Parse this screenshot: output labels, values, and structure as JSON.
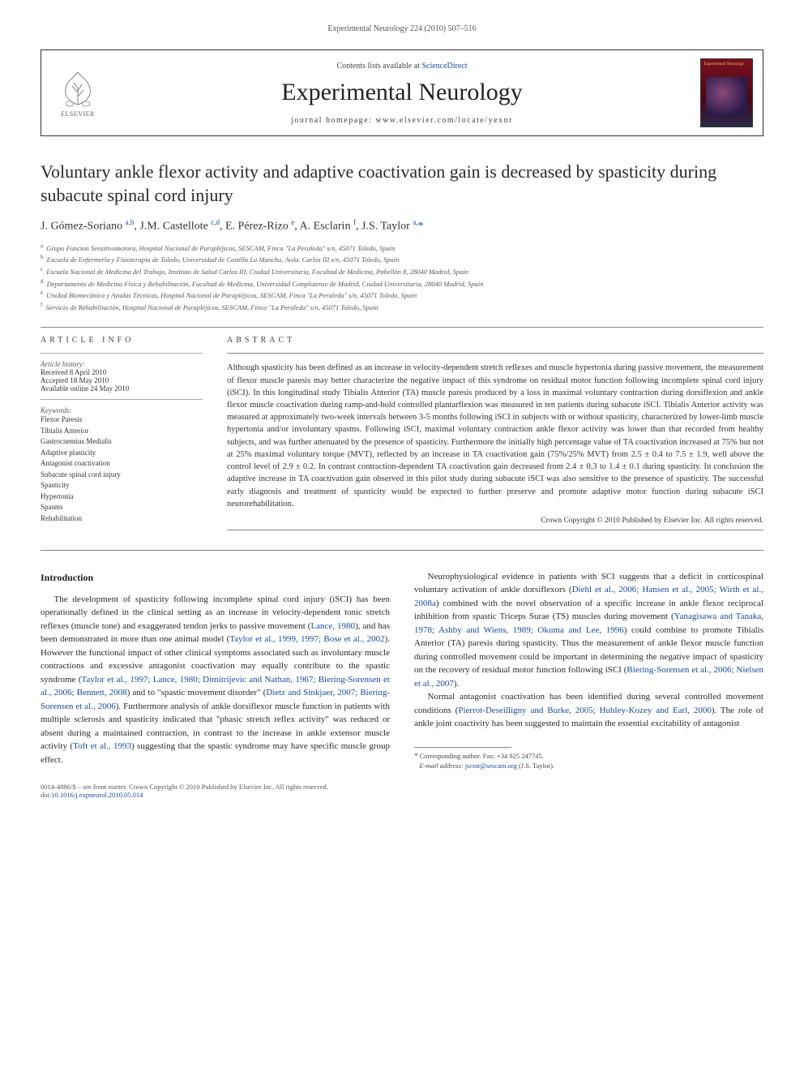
{
  "running_head": "Experimental Neurology 224 (2010) 507–516",
  "banner": {
    "contents_prefix": "Contents lists available at ",
    "contents_link": "ScienceDirect",
    "journal": "Experimental Neurology",
    "homepage_prefix": "journal homepage: ",
    "homepage": "www.elsevier.com/locate/yexnr",
    "publisher_label": "ELSEVIER",
    "cover_title": "Experimental Neurology"
  },
  "title": "Voluntary ankle flexor activity and adaptive coactivation gain is decreased by spasticity during subacute spinal cord injury",
  "authors_html": "J. Gómez-Soriano <sup>a,b</sup>, J.M. Castellote <sup>c,d</sup>, E. Pérez-Rizo <sup>e</sup>, A. Esclarin <sup>f</sup>, J.S. Taylor <sup>a,</sup><span class='star'>*</span>",
  "affiliations": [
    {
      "key": "a",
      "text": "Grupo Funcion Sensitivomotora, Hospital Nacional de Parapléjicos, SESCAM, Finca \"La Peraleda\" s/n, 45071 Toledo, Spain"
    },
    {
      "key": "b",
      "text": "Escuela de Enfermería y Fisioterapia de Toledo, Universidad de Castilla La Mancha, Avda. Carlos III s/n, 45071 Toledo, Spain"
    },
    {
      "key": "c",
      "text": "Escuela Nacional de Medicina del Trabajo, Instituto de Salud Carlos III, Ciudad Universitaria, Facultad de Medicina, Pabellón 8, 28040 Madrid, Spain"
    },
    {
      "key": "d",
      "text": "Departamento de Medicina Física y Rehabilitación, Facultad de Medicina, Universidad Complutense de Madrid, Ciudad Universitaria, 28040 Madrid, Spain"
    },
    {
      "key": "e",
      "text": "Unidad Biomecánica y Ayudas Técnicas, Hospital Nacional de Parapléjicos, SESCAM, Finca \"La Peraleda\" s/n, 45071 Toledo, Spain"
    },
    {
      "key": "f",
      "text": "Servicio de Rehabilitación, Hospital Nacional de Parapléjicos, SESCAM, Finca \"La Peraleda\" s/n, 45071 Toledo, Spain"
    }
  ],
  "article_info": {
    "label": "ARTICLE INFO",
    "history_label": "Article history:",
    "received": "Received 8 April 2010",
    "accepted": "Accepted 18 May 2010",
    "online": "Available online 24 May 2010",
    "keywords_label": "Keywords:",
    "keywords": [
      "Flexor Paresis",
      "Tibialis Anterior",
      "Gastrocnemius Medialis",
      "Adaptive plasticity",
      "Antagonist coactivation",
      "Subacute spinal cord injury",
      "Spasticity",
      "Hypertonia",
      "Spasms",
      "Rehabilitation"
    ]
  },
  "abstract": {
    "label": "ABSTRACT",
    "text": "Although spasticity has been defined as an increase in velocity-dependent stretch reflexes and muscle hypertonia during passive movement, the measurement of flexor muscle paresis may better characterize the negative impact of this syndrome on residual motor function following incomplete spinal cord injury (iSCI). In this longitudinal study Tibialis Anterior (TA) muscle paresis produced by a loss in maximal voluntary contraction during dorsiflexion and ankle flexor muscle coactivation during ramp-and-hold controlled plantarflexion was measured in ten patients during subacute iSCI. Tibialis Anterior activity was measured at approximately two-week intervals between 3-5 months following iSCI in subjects with or without spasticity, characterized by lower-limb muscle hypertonia and/or involuntary spasms. Following iSCI, maximal voluntary contraction ankle flexor activity was lower than that recorded from healthy subjects, and was further attenuated by the presence of spasticity. Furthermore the initially high percentage value of TA coactivation increased at 75% but not at 25% maximal voluntary torque (MVT), reflected by an increase in TA coactivation gain (75%/25% MVT) from 2.5 ± 0.4 to 7.5 ± 1.9, well above the control level of 2.9 ± 0.2. In contrast contraction-dependent TA coactivation gain decreased from 2.4 ± 0.3 to 1.4 ± 0.1 during spasticity. In conclusion the adaptive increase in TA coactivation gain observed in this pilot study during subacute iSCI was also sensitive to the presence of spasticity. The successful early diagnosis and treatment of spasticity would be expected to further preserve and promote adaptive motor function during subacute iSCI neurorehabilitation.",
    "copyright": "Crown Copyright © 2010 Published by Elsevier Inc. All rights reserved."
  },
  "intro": {
    "heading": "Introduction",
    "p1_a": "The development of spasticity following incomplete spinal cord injury (iSCI) has been operationally defined in the clinical setting as an increase in velocity-dependent tonic stretch reflexes (muscle tone) and exaggerated tendon jerks to passive movement (",
    "p1_c1": "Lance, 1980",
    "p1_b": "), and has been demonstrated in more than one animal model (",
    "p1_c2": "Taylor et al., 1999, 1997; Bose et al., 2002",
    "p1_c": "). However the functional impact of other clinical symptoms associated such as involuntary muscle contractions and excessive antagonist coactivation may equally contribute to the spastic syndrome (",
    "p1_c3": "Taylor et al., 1997; Lance, 1980; Dimitrijevic and Nathan, 1967; Biering-Sorensen et al., 2006; Bennett, 2008",
    "p1_d": ") and to \"spastic movement disorder\" (",
    "p1_c4": "Dietz and Sinkjaer, 2007; Biering-Sorensen et al., 2006",
    "p1_e": "). Furthermore analysis of ankle dorsiflexor muscle function in patients with multiple sclerosis and ",
    "p1_f": "spasticity indicated that \"phasic stretch reflex activity\" was reduced or absent during a maintained contraction, in contrast to the increase in ankle extensor muscle activity (",
    "p1_c5": "Toft et al., 1993",
    "p1_g": ") suggesting that the spastic syndrome may have specific muscle group effect.",
    "p2_a": "Neurophysiological evidence in patients with SCI suggests that a deficit in corticospinal voluntary activation of ankle dorsiflexors (",
    "p2_c1": "Diehl et al., 2006; Hansen et al., 2005; Wirth et al., 2008a",
    "p2_b": ") combined with the novel observation of a specific increase in ankle flexor reciprocal inhibition from spastic Triceps Surae (TS) muscles during movement (",
    "p2_c2": "Yanagisawa and Tanaka, 1978; Ashby and Wiens, 1989; Okuma and Lee, 1996",
    "p2_c": ") could combine to promote Tibialis Anterior (TA) paresis during spasticity. Thus the measurement of ankle flexor muscle function during controlled movement could be important in determining the negative impact of spasticity on the recovery of residual motor function following iSCI (",
    "p2_c3": "Biering-Sorensen et al., 2006; Nielsen et al., 2007",
    "p2_d": ").",
    "p3_a": "Normal antagonist coactivation has been identified during several controlled movement conditions (",
    "p3_c1": "Pierrot-Deseilligny and Burke, 2005; Hubley-Kozey and Earl, 2000",
    "p3_b": "). The role of ankle joint coactivity has been suggested to maintain the essential excitability of antagonist"
  },
  "footnote": {
    "corr": "Corresponding author. Fax: +34 925 247745.",
    "email_label": "E-mail address:",
    "email": "jscott@sescam.org",
    "email_who": " (J.S. Taylor)."
  },
  "footer": {
    "line1": "0014-4886/$ – see front matter. Crown Copyright © 2010 Published by Elsevier Inc. All rights reserved.",
    "doi_label": "doi:",
    "doi": "10.1016/j.expneurol.2010.05.014"
  },
  "colors": {
    "link": "#1a4a9c",
    "text": "#2a2a2a",
    "muted": "#555555",
    "rule": "#888888"
  }
}
